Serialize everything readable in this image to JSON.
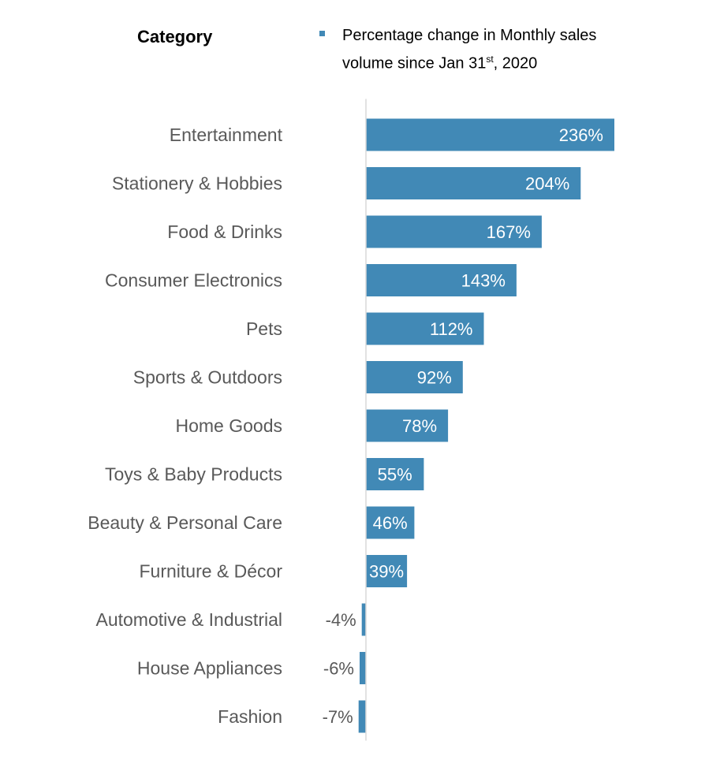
{
  "heading": "Category",
  "legend": {
    "line1": "Percentage change in Monthly sales",
    "line2_prefix": "volume since Jan 31",
    "line2_sup": "st",
    "line2_suffix": ", 2020"
  },
  "colors": {
    "bar": "#4189b6",
    "axis": "#d9d9d9",
    "label": "#595959"
  },
  "chart_data": {
    "type": "bar",
    "orientation": "horizontal",
    "categories": [
      "Entertainment",
      "Stationery & Hobbies",
      "Food & Drinks",
      "Consumer Electronics",
      "Pets",
      "Sports & Outdoors",
      "Home Goods",
      "Toys & Baby Products",
      "Beauty & Personal Care",
      "Furniture & Décor",
      "Automotive & Industrial",
      "House Appliances",
      "Fashion"
    ],
    "values": [
      236,
      204,
      167,
      143,
      112,
      92,
      78,
      55,
      46,
      39,
      -4,
      -6,
      -7
    ],
    "data_labels": [
      "236%",
      "204%",
      "167%",
      "143%",
      "112%",
      "92%",
      "78%",
      "55%",
      "46%",
      "39%",
      "-4%",
      "-6%",
      "-7%"
    ],
    "series_name": "Percentage change in Monthly sales volume since Jan 31st, 2020",
    "grid": false,
    "legend_position": "top"
  }
}
